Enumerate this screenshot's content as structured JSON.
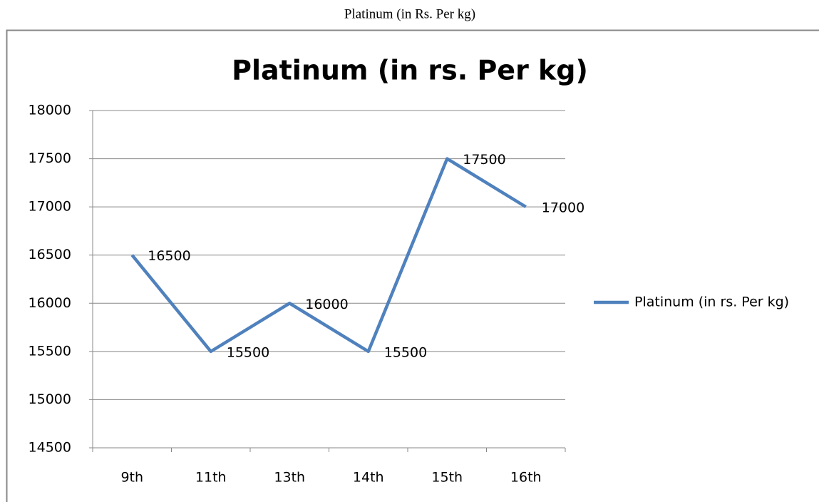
{
  "caption": "Platinum (in Rs. Per kg)",
  "chart_data": {
    "type": "line",
    "title": "Platinum (in rs. Per kg)",
    "categories": [
      "9th",
      "11th",
      "13th",
      "14th",
      "15th",
      "16th"
    ],
    "series": [
      {
        "name": "Platinum (in rs. Per kg)",
        "color": "#4f81bd",
        "values": [
          16500,
          15500,
          16000,
          15500,
          17500,
          17000
        ]
      }
    ],
    "ylim": [
      14500,
      18000
    ],
    "yticks": [
      14500,
      15000,
      15500,
      16000,
      16500,
      17000,
      17500,
      18000
    ],
    "grid": true,
    "legend": "right",
    "data_labels": true
  }
}
